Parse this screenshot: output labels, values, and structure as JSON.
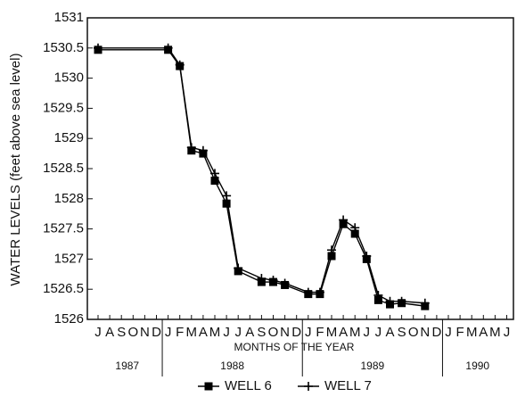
{
  "chart_data": {
    "type": "line",
    "y_label": "WATER LEVELS (feet above sea level)",
    "x_label": "MONTHS OF THE YEAR",
    "categories": [
      "J",
      "A",
      "S",
      "O",
      "N",
      "D",
      "J",
      "F",
      "M",
      "A",
      "M",
      "J",
      "J",
      "A",
      "S",
      "O",
      "N",
      "D",
      "J",
      "F",
      "M",
      "A",
      "M",
      "J",
      "J",
      "A",
      "S",
      "O",
      "N",
      "D",
      "J",
      "F",
      "M",
      "A",
      "M",
      "J"
    ],
    "years": [
      {
        "label": "1987",
        "start": 0,
        "end": 5
      },
      {
        "label": "1988",
        "start": 6,
        "end": 17
      },
      {
        "label": "1989",
        "start": 18,
        "end": 29
      },
      {
        "label": "1990",
        "start": 30,
        "end": 35
      }
    ],
    "ylim": [
      1526,
      1531
    ],
    "yticks": [
      1526,
      1526.5,
      1527,
      1527.5,
      1528,
      1528.5,
      1529,
      1529.5,
      1530,
      1530.5,
      1531
    ],
    "legend": "bottom",
    "series": [
      {
        "name": "WELL 6",
        "color": "#000000",
        "marker": "square",
        "values": [
          1530.47,
          null,
          null,
          null,
          null,
          null,
          1530.47,
          1530.2,
          1528.8,
          1528.75,
          1528.3,
          1527.92,
          1526.8,
          null,
          1526.62,
          1526.62,
          1526.57,
          null,
          1526.42,
          1526.42,
          1527.05,
          1527.58,
          1527.42,
          1527.0,
          1526.32,
          1526.25,
          1526.27,
          null,
          1526.22,
          null,
          null,
          null,
          null,
          null,
          null,
          null
        ]
      },
      {
        "name": "WELL 7",
        "color": "#000000",
        "marker": "plus",
        "values": [
          1530.5,
          null,
          null,
          null,
          null,
          null,
          1530.5,
          1530.22,
          1528.85,
          1528.8,
          1528.42,
          1528.05,
          1526.85,
          null,
          1526.68,
          1526.65,
          1526.6,
          null,
          1526.45,
          1526.45,
          1527.15,
          1527.65,
          1527.52,
          1527.05,
          1526.4,
          1526.3,
          1526.3,
          null,
          1526.27,
          null,
          null,
          null,
          null,
          null,
          null,
          null
        ]
      }
    ]
  }
}
